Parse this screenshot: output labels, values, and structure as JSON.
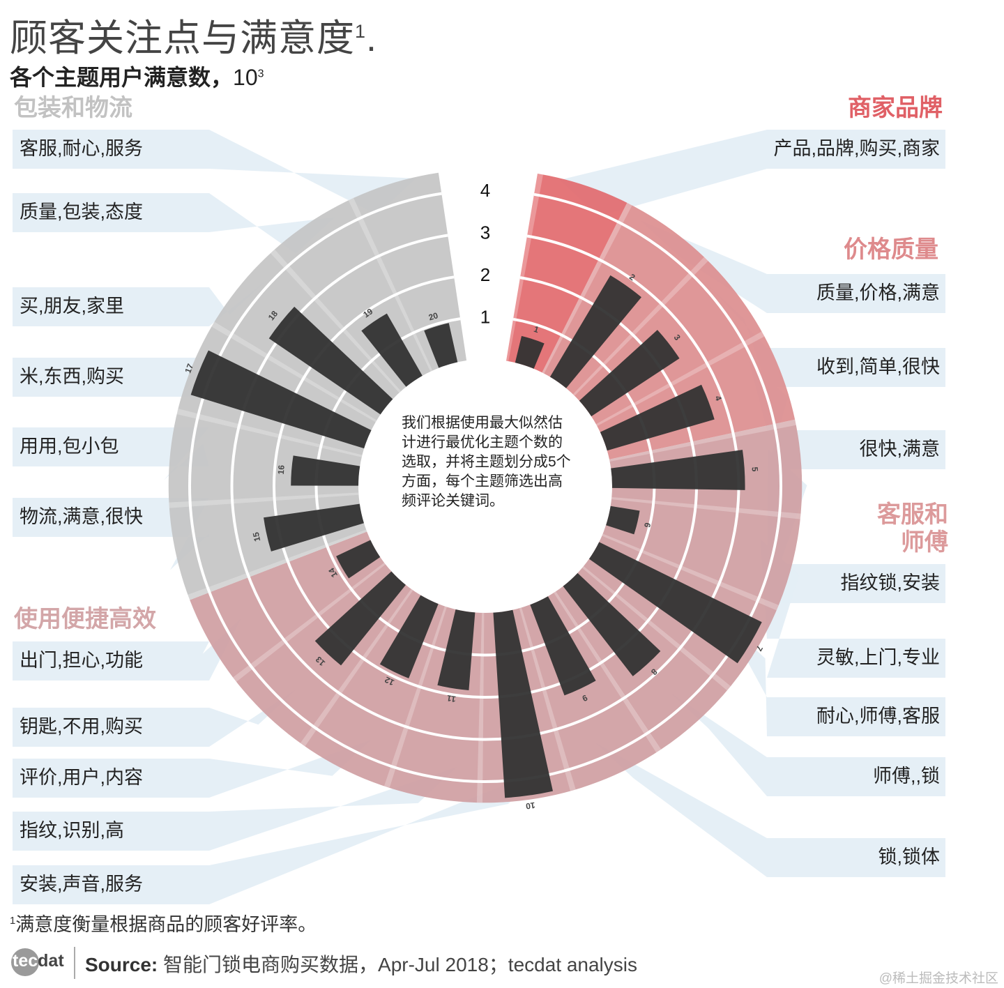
{
  "title": "顾客关注点与满意度",
  "title_sup": "1",
  "title_suffix": ".",
  "subtitle": "各个主题用户满意数，",
  "subtitle_unit": "10",
  "subtitle_exp": "3",
  "center_note": "我们根据使用最大似然估计进行最优化主题个数的选取，并将主题划分成5个方面，每个主题筛选出高频评论关键词。",
  "footnote_sup": "1",
  "footnote": "满意度衡量根据商品的顾客好评率。",
  "logo_a": "tec",
  "logo_b": "dat",
  "source_label": "Source:",
  "source_text": " 智能门锁电商购买数据，Apr-Jul 2018；tecdat analysis",
  "watermark": "@稀土掘金技术社区",
  "colors": {
    "category_red": "#e26a6e",
    "category_rose": "#dc8e8f",
    "category_pink": "#cf9ea2",
    "category_gray": "#c4c4c4",
    "label_strip": "#e4eef5",
    "bar": "#333333"
  },
  "chart_data": {
    "type": "radial-bar",
    "title": "顾客关注点与满意度",
    "subtitle": "各个主题用户满意数，10^3",
    "radial_ticks": [
      1,
      2,
      3,
      4
    ],
    "radial_axis_range": [
      0,
      4.5
    ],
    "categories": [
      {
        "name": "商家品牌",
        "topics": [
          1
        ]
      },
      {
        "name": "价格质量",
        "topics": [
          2,
          3,
          4
        ]
      },
      {
        "name": "客服和师傅",
        "topics": [
          5,
          6,
          7,
          8
        ]
      },
      {
        "name": "使用便捷高效",
        "topics": [
          9,
          10,
          11,
          12,
          13,
          14
        ]
      },
      {
        "name": "包装和物流",
        "topics": [
          15,
          16,
          17,
          18,
          19,
          20
        ]
      }
    ],
    "topics": [
      {
        "id": 1,
        "label": "1",
        "value": 0.65,
        "keywords": "产品,品牌,购买,商家"
      },
      {
        "id": 2,
        "label": "2",
        "value": 2.8,
        "keywords": "质量,价格,满意"
      },
      {
        "id": 3,
        "label": "3",
        "value": 2.5,
        "keywords": "收到,简单,很快"
      },
      {
        "id": 4,
        "label": "4",
        "value": 2.65,
        "keywords": "很快,满意"
      },
      {
        "id": 5,
        "label": "5",
        "value": 3.15,
        "keywords": "指纹锁,安装"
      },
      {
        "id": 6,
        "label": "6",
        "value": 0.7,
        "keywords": "灵敏,上门,专业"
      },
      {
        "id": 7,
        "label": "7",
        "value": 4.3,
        "keywords": "耐心,师傅,客服"
      },
      {
        "id": 8,
        "label": "8",
        "value": 2.7,
        "keywords": "师傅,,锁"
      },
      {
        "id": 9,
        "label": "9",
        "value": 2.3,
        "keywords": "锁,锁体"
      },
      {
        "id": 10,
        "label": "10",
        "value": 4.4,
        "keywords": "安装,声音,服务"
      },
      {
        "id": 11,
        "label": "11",
        "value": 1.85,
        "keywords": "指纹,识别,高"
      },
      {
        "id": 12,
        "label": "12",
        "value": 1.9,
        "keywords": "评价,用户,内容"
      },
      {
        "id": 13,
        "label": "13",
        "value": 2.45,
        "keywords": "钥匙,不用,购买"
      },
      {
        "id": 14,
        "label": "14",
        "value": 0.9,
        "keywords": "出门,担心,功能"
      },
      {
        "id": 15,
        "label": "15",
        "value": 2.3,
        "keywords": "物流,满意,很快"
      },
      {
        "id": 16,
        "label": "16",
        "value": 1.6,
        "keywords": "用用,包小包"
      },
      {
        "id": 17,
        "label": "17",
        "value": 4.3,
        "keywords": "米,东西,购买"
      },
      {
        "id": 18,
        "label": "18",
        "value": 3.2,
        "keywords": "买,朋友,家里"
      },
      {
        "id": 19,
        "label": "19",
        "value": 1.7,
        "keywords": "质量,包装,态度"
      },
      {
        "id": 20,
        "label": "20",
        "value": 0.95,
        "keywords": "客服,耐心,服务"
      }
    ]
  }
}
